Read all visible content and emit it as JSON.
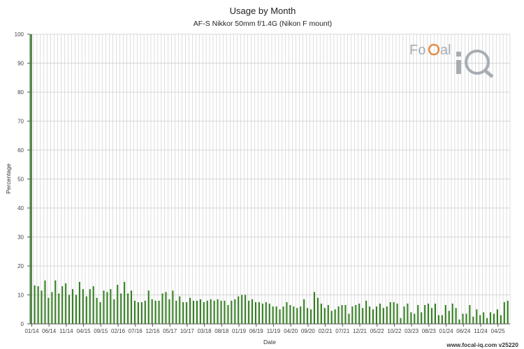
{
  "chart_data": {
    "type": "bar",
    "title": "Usage by Month",
    "subtitle": "AF-S Nikkor 50mm f/1.4G (Nikon F mount)",
    "xlabel": "Date",
    "ylabel": "Percentage",
    "ylim": [
      0,
      100
    ],
    "yticks": [
      0,
      10,
      20,
      30,
      40,
      50,
      60,
      70,
      80,
      90,
      100
    ],
    "grid": true,
    "bar_color": "#2e7d1a",
    "x_tick_labels": [
      "01/14",
      "06/14",
      "11/14",
      "04/15",
      "09/15",
      "02/16",
      "07/16",
      "12/16",
      "05/17",
      "10/17",
      "03/18",
      "08/18",
      "01/19",
      "06/19",
      "11/19",
      "04/20",
      "09/20",
      "02/21",
      "07/21",
      "12/21",
      "05/22",
      "10/22",
      "03/23",
      "08/23",
      "01/24",
      "06/24",
      "11/24",
      "04/25"
    ],
    "start_month": "2014-01",
    "categories": [
      "01/14",
      "02/14",
      "03/14",
      "04/14",
      "05/14",
      "06/14",
      "07/14",
      "08/14",
      "09/14",
      "10/14",
      "11/14",
      "12/14",
      "01/15",
      "02/15",
      "03/15",
      "04/15",
      "05/15",
      "06/15",
      "07/15",
      "08/15",
      "09/15",
      "10/15",
      "11/15",
      "12/15",
      "01/16",
      "02/16",
      "03/16",
      "04/16",
      "05/16",
      "06/16",
      "07/16",
      "08/16",
      "09/16",
      "10/16",
      "11/16",
      "12/16",
      "01/17",
      "02/17",
      "03/17",
      "04/17",
      "05/17",
      "06/17",
      "07/17",
      "08/17",
      "09/17",
      "10/17",
      "11/17",
      "12/17",
      "01/18",
      "02/18",
      "03/18",
      "04/18",
      "05/18",
      "06/18",
      "07/18",
      "08/18",
      "09/18",
      "10/18",
      "11/18",
      "12/18",
      "01/19",
      "02/19",
      "03/19",
      "04/19",
      "05/19",
      "06/19",
      "07/19",
      "08/19",
      "09/19",
      "10/19",
      "11/19",
      "12/19",
      "01/20",
      "02/20",
      "03/20",
      "04/20",
      "05/20",
      "06/20",
      "07/20",
      "08/20",
      "09/20",
      "10/20",
      "11/20",
      "12/20",
      "01/21",
      "02/21",
      "03/21",
      "04/21",
      "05/21",
      "06/21",
      "07/21",
      "08/21",
      "09/21",
      "10/21",
      "11/21",
      "12/21",
      "01/22",
      "02/22",
      "03/22",
      "04/22",
      "05/22",
      "06/22",
      "07/22",
      "08/22",
      "09/22",
      "10/22",
      "11/22",
      "12/22",
      "01/23",
      "02/23",
      "03/23",
      "04/23",
      "05/23",
      "06/23",
      "07/23",
      "08/23",
      "09/23",
      "10/23",
      "11/23",
      "12/23",
      "01/24",
      "02/24",
      "03/24",
      "04/24",
      "05/24",
      "06/24",
      "07/24",
      "08/24",
      "09/24",
      "10/24",
      "11/24",
      "12/24",
      "01/25",
      "02/25",
      "03/25",
      "04/25",
      "05/25",
      "06/25",
      "07/25"
    ],
    "values": [
      100,
      13.3,
      13,
      11.5,
      15,
      9,
      11,
      15,
      10.5,
      13,
      14,
      10,
      12,
      10,
      14.5,
      12,
      9.5,
      12,
      13,
      9,
      7.5,
      11.5,
      11,
      12,
      8.5,
      13.5,
      10.5,
      14.5,
      10.5,
      11.5,
      8,
      7.5,
      7.5,
      8,
      11.5,
      8.5,
      8,
      8,
      10.5,
      11,
      8.5,
      11.5,
      8,
      9.5,
      7.5,
      7.5,
      9,
      8,
      8,
      8.5,
      7.5,
      8,
      8.5,
      8,
      8.5,
      8,
      8,
      6.5,
      8,
      8.5,
      9.5,
      10,
      10,
      8,
      8.5,
      7.5,
      7.5,
      7,
      7.5,
      7,
      6,
      6,
      5,
      6,
      7.5,
      6.5,
      6,
      5.5,
      6,
      8.5,
      5.5,
      5,
      11,
      9,
      7,
      5.5,
      6.5,
      4.5,
      5,
      6,
      6.5,
      6.5,
      3.5,
      6,
      6.5,
      7,
      5.5,
      8,
      6,
      5,
      6,
      7,
      5.5,
      6,
      7.5,
      7.5,
      7,
      2,
      6,
      7,
      4,
      3.5,
      6.5,
      4,
      6.5,
      7,
      5.5,
      7,
      3,
      3,
      6.5,
      4.5,
      7,
      5.5,
      1.5,
      3.5,
      3.5,
      6.5,
      2.5,
      5,
      3,
      4,
      2,
      4,
      3.5,
      5,
      3,
      7.5,
      8
    ]
  },
  "footer": {
    "watermark": "www.focal-iq.com  v25220"
  },
  "logo": {
    "text": "FoCal iQ"
  }
}
